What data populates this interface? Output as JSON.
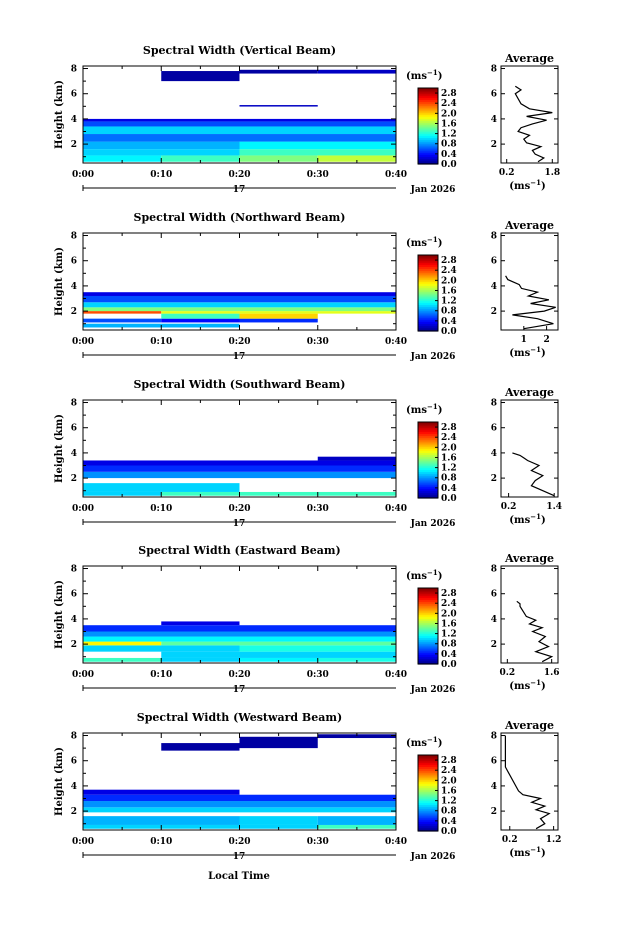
{
  "figure": {
    "xlabel": "Local Time",
    "xticks": [
      "0:00",
      "0:10",
      "0:20",
      "0:30",
      "0:40"
    ],
    "day_label": "17",
    "month_label": "Jan 2026",
    "unit_label": "(ms",
    "unit_sup": "−1",
    "unit_close": ")",
    "avg_title": "Average",
    "ylabel": "Height (km)",
    "colormap": "jet"
  },
  "chart_data": [
    {
      "type": "heatmap",
      "title": "Spectral Width (Vertical Beam)",
      "ylabel": "Height (km)",
      "yticks": [
        "2",
        "4",
        "6",
        "8"
      ],
      "xlim": [
        0,
        40
      ],
      "ylim": [
        0.5,
        8.2
      ],
      "colorbar_ticks": [
        "0.0",
        "0.4",
        "0.8",
        "1.2",
        "1.6",
        "2.0",
        "2.4",
        "2.8"
      ],
      "colorbar_range": [
        0,
        3.0
      ],
      "rows": [
        {
          "y0": 0.6,
          "y1": 1.1,
          "cells": [
            [
              0,
              10,
              1.1
            ],
            [
              10,
              20,
              1.3
            ],
            [
              20,
              30,
              1.5
            ],
            [
              30,
              40,
              1.7
            ]
          ]
        },
        {
          "y0": 1.1,
          "y1": 1.6,
          "cells": [
            [
              0,
              20,
              1.0
            ],
            [
              20,
              40,
              1.3
            ]
          ]
        },
        {
          "y0": 1.6,
          "y1": 2.2,
          "cells": [
            [
              0,
              20,
              0.9
            ],
            [
              20,
              40,
              1.1
            ]
          ]
        },
        {
          "y0": 2.2,
          "y1": 2.8,
          "cells": [
            [
              0,
              40,
              0.7
            ]
          ]
        },
        {
          "y0": 2.8,
          "y1": 3.4,
          "cells": [
            [
              0,
              40,
              1.0
            ]
          ]
        },
        {
          "y0": 3.4,
          "y1": 3.8,
          "cells": [
            [
              0,
              40,
              0.6
            ]
          ]
        },
        {
          "y0": 3.8,
          "y1": 4.0,
          "cells": [
            [
              0,
              40,
              0.3
            ]
          ]
        },
        {
          "y0": 5.0,
          "y1": 5.1,
          "cells": [
            [
              20,
              30,
              0.2
            ]
          ]
        },
        {
          "y0": 7.0,
          "y1": 7.8,
          "cells": [
            [
              10,
              20,
              0.1
            ]
          ]
        },
        {
          "y0": 7.6,
          "y1": 7.9,
          "cells": [
            [
              20,
              30,
              0.1
            ],
            [
              30,
              40,
              0.2
            ]
          ]
        }
      ],
      "avg": {
        "xlim": [
          0,
          2
        ],
        "xticks": [
          "0.2",
          "1.8"
        ],
        "yticks": [
          "2",
          "4",
          "6",
          "8"
        ],
        "ylim": [
          0.5,
          8.2
        ],
        "x": [
          1.3,
          1.5,
          1.2,
          1.1,
          1.4,
          0.9,
          0.8,
          1.0,
          0.6,
          0.7,
          1.1,
          1.6,
          0.9,
          1.8,
          1.0,
          0.7,
          0.5,
          0.7,
          0.5
        ],
        "y": [
          0.6,
          0.9,
          1.2,
          1.5,
          1.8,
          2.1,
          2.4,
          2.7,
          3.0,
          3.3,
          3.6,
          3.9,
          4.2,
          4.5,
          4.8,
          5.2,
          6.0,
          6.3,
          6.6
        ]
      }
    },
    {
      "type": "heatmap",
      "title": "Spectral Width (Northward Beam)",
      "ylabel": "Height (km)",
      "yticks": [
        "2",
        "4",
        "6",
        "8"
      ],
      "xlim": [
        0,
        40
      ],
      "ylim": [
        0.5,
        8.2
      ],
      "colorbar_ticks": [
        "0.0",
        "0.4",
        "0.8",
        "1.2",
        "1.6",
        "2.0",
        "2.4",
        "2.8"
      ],
      "colorbar_range": [
        0,
        3.0
      ],
      "rows": [
        {
          "y0": 0.7,
          "y1": 1.0,
          "cells": [
            [
              0,
              20,
              0.9
            ]
          ]
        },
        {
          "y0": 1.1,
          "y1": 1.4,
          "cells": [
            [
              0,
              10,
              0.6
            ],
            [
              10,
              20,
              0.4
            ],
            [
              20,
              30,
              0.5
            ]
          ]
        },
        {
          "y0": 1.4,
          "y1": 1.8,
          "cells": [
            [
              10,
              20,
              1.3
            ],
            [
              20,
              30,
              2.0
            ]
          ]
        },
        {
          "y0": 1.8,
          "y1": 2.0,
          "cells": [
            [
              0,
              10,
              2.4
            ],
            [
              10,
              40,
              1.8
            ]
          ]
        },
        {
          "y0": 2.0,
          "y1": 2.3,
          "cells": [
            [
              0,
              40,
              1.5
            ]
          ]
        },
        {
          "y0": 2.3,
          "y1": 2.7,
          "cells": [
            [
              0,
              40,
              1.0
            ]
          ]
        },
        {
          "y0": 2.7,
          "y1": 3.2,
          "cells": [
            [
              0,
              40,
              0.6
            ]
          ]
        },
        {
          "y0": 3.2,
          "y1": 3.5,
          "cells": [
            [
              0,
              20,
              0.3
            ],
            [
              20,
              40,
              0.3
            ]
          ]
        }
      ],
      "avg": {
        "xlim": [
          0,
          2.5
        ],
        "xticks": [
          "1",
          "2"
        ],
        "yticks": [
          "2",
          "4",
          "6",
          "8"
        ],
        "ylim": [
          0.5,
          8.2
        ],
        "x": [
          1.0,
          2.3,
          1.6,
          0.5,
          1.9,
          2.4,
          1.3,
          2.1,
          1.2,
          1.6,
          0.9,
          0.8,
          0.3,
          0.2
        ],
        "y": [
          0.6,
          1.0,
          1.4,
          1.7,
          2.0,
          2.3,
          2.6,
          2.9,
          3.2,
          3.5,
          3.8,
          4.1,
          4.5,
          4.8
        ]
      }
    },
    {
      "type": "heatmap",
      "title": "Spectral Width (Southward Beam)",
      "ylabel": "Height (km)",
      "yticks": [
        "2",
        "4",
        "6",
        "8"
      ],
      "xlim": [
        0,
        40
      ],
      "ylim": [
        0.5,
        8.2
      ],
      "colorbar_ticks": [
        "0.0",
        "0.4",
        "0.8",
        "1.2",
        "1.6",
        "2.0",
        "2.4",
        "2.8"
      ],
      "colorbar_range": [
        0,
        3.0
      ],
      "rows": [
        {
          "y0": 0.6,
          "y1": 0.9,
          "cells": [
            [
              0,
              10,
              1.0
            ],
            [
              10,
              40,
              1.3
            ]
          ]
        },
        {
          "y0": 0.9,
          "y1": 1.6,
          "cells": [
            [
              0,
              20,
              1.0
            ]
          ]
        },
        {
          "y0": 2.0,
          "y1": 2.5,
          "cells": [
            [
              0,
              40,
              0.8
            ]
          ]
        },
        {
          "y0": 2.5,
          "y1": 3.0,
          "cells": [
            [
              0,
              40,
              0.5
            ]
          ]
        },
        {
          "y0": 3.0,
          "y1": 3.4,
          "cells": [
            [
              0,
              40,
              0.3
            ]
          ]
        },
        {
          "y0": 3.4,
          "y1": 3.7,
          "cells": [
            [
              30,
              40,
              0.2
            ]
          ]
        }
      ],
      "avg": {
        "xlim": [
          0,
          1.5
        ],
        "xticks": [
          "0.2",
          "1.4"
        ],
        "yticks": [
          "2",
          "4",
          "6",
          "8"
        ],
        "ylim": [
          0.5,
          8.2
        ],
        "x": [
          1.4,
          1.1,
          0.8,
          0.9,
          1.1,
          0.8,
          1.0,
          0.7,
          0.6,
          0.5,
          0.3
        ],
        "y": [
          0.6,
          1.0,
          1.4,
          1.8,
          2.2,
          2.6,
          3.0,
          3.4,
          3.6,
          3.8,
          4.0
        ]
      }
    },
    {
      "type": "heatmap",
      "title": "Spectral Width (Eastward Beam)",
      "ylabel": "Height (km)",
      "yticks": [
        "2",
        "4",
        "6",
        "8"
      ],
      "xlim": [
        0,
        40
      ],
      "ylim": [
        0.5,
        8.2
      ],
      "colorbar_ticks": [
        "0.0",
        "0.4",
        "0.8",
        "1.2",
        "1.6",
        "2.0",
        "2.4",
        "2.8"
      ],
      "colorbar_range": [
        0,
        3.0
      ],
      "rows": [
        {
          "y0": 0.6,
          "y1": 0.9,
          "cells": [
            [
              0,
              10,
              1.3
            ],
            [
              10,
              20,
              1.0
            ],
            [
              20,
              30,
              1.1
            ],
            [
              30,
              40,
              1.2
            ]
          ]
        },
        {
          "y0": 0.9,
          "y1": 1.4,
          "cells": [
            [
              10,
              40,
              1.0
            ]
          ]
        },
        {
          "y0": 1.4,
          "y1": 1.9,
          "cells": [
            [
              0,
              20,
              1.0
            ],
            [
              20,
              40,
              1.2
            ]
          ]
        },
        {
          "y0": 1.9,
          "y1": 2.2,
          "cells": [
            [
              0,
              10,
              1.9
            ],
            [
              10,
              40,
              1.4
            ]
          ]
        },
        {
          "y0": 2.2,
          "y1": 2.6,
          "cells": [
            [
              0,
              40,
              1.1
            ]
          ]
        },
        {
          "y0": 2.6,
          "y1": 3.0,
          "cells": [
            [
              0,
              40,
              0.8
            ]
          ]
        },
        {
          "y0": 3.0,
          "y1": 3.5,
          "cells": [
            [
              0,
              40,
              0.5
            ]
          ]
        },
        {
          "y0": 3.5,
          "y1": 3.8,
          "cells": [
            [
              10,
              20,
              0.3
            ]
          ]
        }
      ],
      "avg": {
        "xlim": [
          0,
          1.8
        ],
        "xticks": [
          "0.2",
          "1.6"
        ],
        "yticks": [
          "2",
          "4",
          "6",
          "8"
        ],
        "ylim": [
          0.5,
          8.2
        ],
        "x": [
          1.3,
          1.6,
          1.1,
          1.5,
          1.2,
          1.4,
          1.0,
          1.3,
          0.9,
          1.1,
          0.8,
          0.7,
          0.6,
          0.6,
          0.5
        ],
        "y": [
          0.6,
          1.0,
          1.4,
          1.8,
          2.2,
          2.6,
          3.0,
          3.3,
          3.6,
          3.9,
          4.2,
          4.6,
          5.0,
          5.2,
          5.4
        ]
      }
    },
    {
      "type": "heatmap",
      "title": "Spectral Width (Westward Beam)",
      "ylabel": "Height (km)",
      "yticks": [
        "2",
        "4",
        "6",
        "8"
      ],
      "xlim": [
        0,
        40
      ],
      "ylim": [
        0.5,
        8.2
      ],
      "colorbar_ticks": [
        "0.0",
        "0.4",
        "0.8",
        "1.2",
        "1.6",
        "2.0",
        "2.4",
        "2.8"
      ],
      "colorbar_range": [
        0,
        3.0
      ],
      "rows": [
        {
          "y0": 0.6,
          "y1": 0.9,
          "cells": [
            [
              0,
              30,
              1.0
            ],
            [
              30,
              40,
              1.3
            ]
          ]
        },
        {
          "y0": 0.9,
          "y1": 1.6,
          "cells": [
            [
              0,
              20,
              0.9
            ],
            [
              20,
              30,
              1.0
            ],
            [
              30,
              40,
              0.9
            ]
          ]
        },
        {
          "y0": 1.9,
          "y1": 2.3,
          "cells": [
            [
              0,
              40,
              1.0
            ]
          ]
        },
        {
          "y0": 2.3,
          "y1": 2.8,
          "cells": [
            [
              0,
              40,
              0.8
            ]
          ]
        },
        {
          "y0": 2.8,
          "y1": 3.3,
          "cells": [
            [
              0,
              40,
              0.5
            ]
          ]
        },
        {
          "y0": 3.3,
          "y1": 3.7,
          "cells": [
            [
              0,
              20,
              0.3
            ]
          ]
        },
        {
          "y0": 6.8,
          "y1": 7.4,
          "cells": [
            [
              10,
              20,
              0.1
            ]
          ]
        },
        {
          "y0": 7.0,
          "y1": 7.9,
          "cells": [
            [
              20,
              30,
              0.1
            ]
          ]
        },
        {
          "y0": 7.8,
          "y1": 8.1,
          "cells": [
            [
              30,
              40,
              0.1
            ]
          ]
        }
      ],
      "avg": {
        "xlim": [
          0,
          1.3
        ],
        "xticks": [
          "0.2",
          "1.2"
        ],
        "yticks": [
          "2",
          "4",
          "6",
          "8"
        ],
        "ylim": [
          0.5,
          8.2
        ],
        "x": [
          0.8,
          1.0,
          0.9,
          1.1,
          0.8,
          1.0,
          0.7,
          0.9,
          0.5,
          0.4,
          0.1,
          0.1,
          0.1
        ],
        "y": [
          0.6,
          1.0,
          1.4,
          1.8,
          2.1,
          2.4,
          2.7,
          3.0,
          3.3,
          3.6,
          5.5,
          6.5,
          8.0
        ]
      }
    }
  ]
}
